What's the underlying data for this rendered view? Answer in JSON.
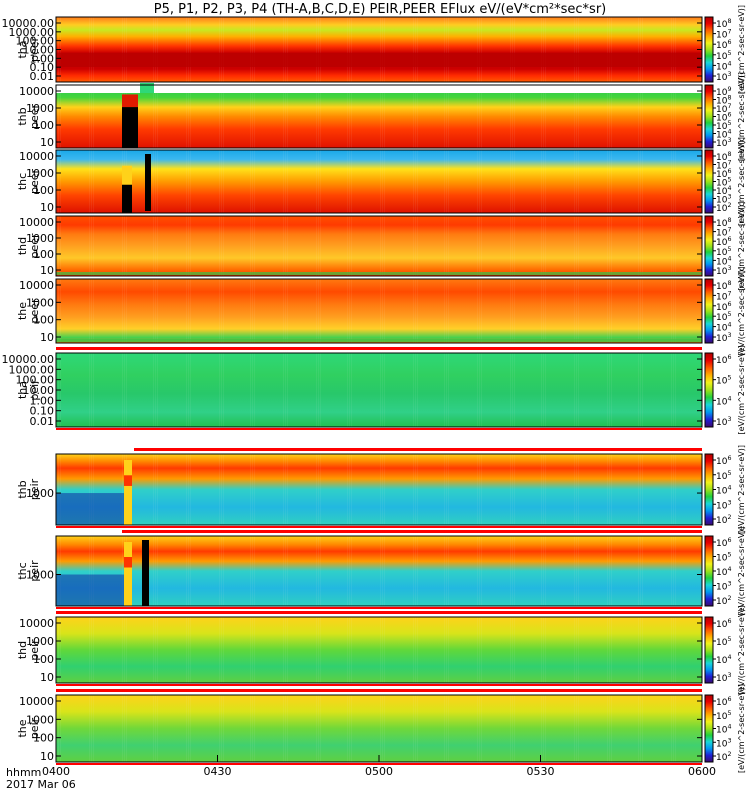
{
  "title": "P5, P1, P2, P3, P4 (TH-A,B,C,D,E) PEIR,PEER EFlux eV/(eV*cm²*sec*sr)",
  "time_label_1": "hhmm",
  "time_label_2": "2017 Mar 06",
  "chart_data": [
    {
      "type": "heatmap",
      "probe": "tha",
      "product": "peer",
      "ylabel": [
        "tha",
        "peer"
      ],
      "yticks": [
        "10000.00",
        "1000.00",
        "100.00",
        "10.00",
        "1.00",
        "0.10",
        "0.01"
      ],
      "colorbar_ticks": [
        "10^8",
        "10^7",
        "10^6",
        "10^5",
        "10^4",
        "10^3"
      ],
      "colorbar_label": "[eV/(cm^2-sec-sr-eV)]"
    },
    {
      "type": "heatmap",
      "probe": "thb",
      "product": "peer",
      "ylabel": [
        "thb",
        "peer"
      ],
      "yticks": [
        "10000",
        "1000",
        "100",
        "10"
      ],
      "colorbar_ticks": [
        "10^9",
        "10^8",
        "10^7",
        "10^6",
        "10^5",
        "10^4",
        "10^3"
      ],
      "colorbar_label": "[eV/(cm^2-sec-sr-eV)]"
    },
    {
      "type": "heatmap",
      "probe": "thc",
      "product": "peer",
      "ylabel": [
        "thc",
        "peer"
      ],
      "yticks": [
        "10000",
        "1000",
        "100",
        "10"
      ],
      "colorbar_ticks": [
        "10^8",
        "10^7",
        "10^6",
        "10^5",
        "10^4",
        "10^3",
        "10^2"
      ],
      "colorbar_label": "[eV/(cm^2-sec-sr-eV)]"
    },
    {
      "type": "heatmap",
      "probe": "thd",
      "product": "peer",
      "ylabel": [
        "thd",
        "peer"
      ],
      "yticks": [
        "10000",
        "1000",
        "100",
        "10"
      ],
      "colorbar_ticks": [
        "10^8",
        "10^7",
        "10^6",
        "10^5",
        "10^4",
        "10^3"
      ],
      "colorbar_label": "[eV/(cm^2-sec-sr-eV)]"
    },
    {
      "type": "heatmap",
      "probe": "the",
      "product": "peer",
      "ylabel": [
        "the",
        "peer"
      ],
      "yticks": [
        "10000",
        "1000",
        "100",
        "10"
      ],
      "colorbar_ticks": [
        "10^8",
        "10^7",
        "10^6",
        "10^5",
        "10^4",
        "10^3"
      ],
      "colorbar_label": "[eV/(cm^2-sec-sr-eV)]"
    },
    {
      "type": "heatmap",
      "probe": "tha",
      "product": "peir",
      "ylabel": [
        "tha",
        "peir"
      ],
      "yticks": [
        "10000.00",
        "1000.00",
        "100.00",
        "10.00",
        "1.00",
        "0.10",
        "0.01"
      ],
      "colorbar_ticks": [
        "10^6",
        "10^5",
        "10^4",
        "10^3"
      ],
      "colorbar_label": "[eV/(cm^2-sec-sr-eV)]"
    },
    {
      "type": "heatmap",
      "probe": "thb",
      "product": "peir",
      "ylabel": [
        "thb",
        "peir"
      ],
      "yticks": [
        "1000"
      ],
      "colorbar_ticks": [
        "10^6",
        "10^5",
        "10^4",
        "10^3",
        "10^2"
      ],
      "colorbar_label": "[eV/(cm^2-sec-sr-eV)]"
    },
    {
      "type": "heatmap",
      "probe": "thc",
      "product": "peir",
      "ylabel": [
        "thc",
        "peir"
      ],
      "yticks": [
        "1000"
      ],
      "colorbar_ticks": [
        "10^6",
        "10^5",
        "10^4",
        "10^3",
        "10^2"
      ],
      "colorbar_label": "[eV/(cm^2-sec-sr-eV)]"
    },
    {
      "type": "heatmap",
      "probe": "thd",
      "product": "peir",
      "ylabel": [
        "thd",
        "peir"
      ],
      "yticks": [
        "10000",
        "1000",
        "100",
        "10"
      ],
      "colorbar_ticks": [
        "10^6",
        "10^5",
        "10^4",
        "10^3"
      ],
      "colorbar_label": "[eV/(cm^2-sec-sr-eV)]"
    },
    {
      "type": "heatmap",
      "probe": "the",
      "product": "peir",
      "ylabel": [
        "the",
        "peir"
      ],
      "yticks": [
        "10000",
        "1000",
        "100",
        "10"
      ],
      "colorbar_ticks": [
        "10^6",
        "10^5",
        "10^4",
        "10^3",
        "10^2"
      ],
      "colorbar_label": "[eV/(cm^2-sec-sr-eV)]"
    }
  ],
  "xaxis": {
    "ticks": [
      "0400",
      "0430",
      "0500",
      "0530",
      "0600"
    ]
  }
}
